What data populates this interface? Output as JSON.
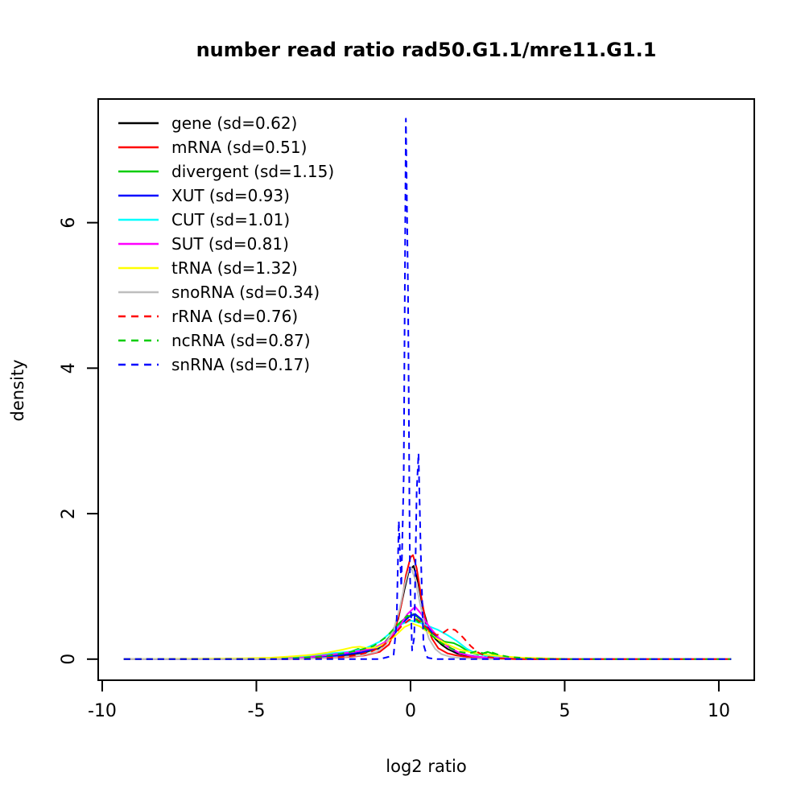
{
  "chart_data": {
    "type": "line",
    "title": "number read ratio rad50.G1.1/mre11.G1.1",
    "xlabel": "log2 ratio",
    "ylabel": "density",
    "xlim": [
      -10.13,
      11.15
    ],
    "ylim": [
      -0.29,
      7.7
    ],
    "x_ticks": [
      -10,
      -5,
      0,
      5,
      10
    ],
    "y_ticks": [
      0,
      2,
      4,
      6
    ],
    "grid": false,
    "legend_position": "top-left",
    "series": [
      {
        "name": "gene",
        "sd": 0.62,
        "label": "gene (sd=0.62)",
        "color": "#000000",
        "dashed": false,
        "points": [
          [
            -9.3,
            0
          ],
          [
            -5,
            0
          ],
          [
            -4,
            0.01
          ],
          [
            -3,
            0.02
          ],
          [
            -2.5,
            0.04
          ],
          [
            -2,
            0.06
          ],
          [
            -1.5,
            0.09
          ],
          [
            -1,
            0.15
          ],
          [
            -0.7,
            0.28
          ],
          [
            -0.4,
            0.55
          ],
          [
            -0.2,
            0.95
          ],
          [
            -0.05,
            1.22
          ],
          [
            0.1,
            1.28
          ],
          [
            0.25,
            1.05
          ],
          [
            0.4,
            0.7
          ],
          [
            0.6,
            0.4
          ],
          [
            0.8,
            0.28
          ],
          [
            1,
            0.2
          ],
          [
            1.2,
            0.14
          ],
          [
            1.5,
            0.08
          ],
          [
            1.8,
            0.05
          ],
          [
            2.2,
            0.03
          ],
          [
            3,
            0.01
          ],
          [
            4,
            0
          ],
          [
            10.4,
            0
          ]
        ]
      },
      {
        "name": "mRNA",
        "sd": 0.51,
        "label": "mRNA (sd=0.51)",
        "color": "#FF0000",
        "dashed": false,
        "points": [
          [
            -9.3,
            0
          ],
          [
            -4,
            0
          ],
          [
            -3,
            0.01
          ],
          [
            -2,
            0.03
          ],
          [
            -1.5,
            0.05
          ],
          [
            -1,
            0.1
          ],
          [
            -0.7,
            0.2
          ],
          [
            -0.5,
            0.4
          ],
          [
            -0.3,
            0.75
          ],
          [
            -0.15,
            1.15
          ],
          [
            0,
            1.4
          ],
          [
            0.08,
            1.43
          ],
          [
            0.2,
            1.25
          ],
          [
            0.35,
            0.85
          ],
          [
            0.5,
            0.5
          ],
          [
            0.7,
            0.28
          ],
          [
            0.9,
            0.15
          ],
          [
            1.2,
            0.08
          ],
          [
            1.5,
            0.05
          ],
          [
            2,
            0.02
          ],
          [
            2.8,
            0.01
          ],
          [
            3.5,
            0
          ],
          [
            10.4,
            0
          ]
        ]
      },
      {
        "name": "divergent",
        "sd": 1.15,
        "label": "divergent (sd=1.15)",
        "color": "#00CD00",
        "dashed": false,
        "points": [
          [
            -9.3,
            0
          ],
          [
            -4.5,
            0
          ],
          [
            -3.5,
            0.02
          ],
          [
            -2.8,
            0.04
          ],
          [
            -2.2,
            0.07
          ],
          [
            -1.9,
            0.11
          ],
          [
            -1.7,
            0.14
          ],
          [
            -1.5,
            0.11
          ],
          [
            -1.2,
            0.12
          ],
          [
            -0.9,
            0.2
          ],
          [
            -0.6,
            0.35
          ],
          [
            -0.3,
            0.52
          ],
          [
            -0.1,
            0.58
          ],
          [
            0.1,
            0.62
          ],
          [
            0.3,
            0.55
          ],
          [
            0.5,
            0.45
          ],
          [
            0.8,
            0.32
          ],
          [
            1.1,
            0.24
          ],
          [
            1.4,
            0.22
          ],
          [
            1.6,
            0.18
          ],
          [
            1.9,
            0.1
          ],
          [
            2.2,
            0.06
          ],
          [
            2.5,
            0.1
          ],
          [
            2.7,
            0.07
          ],
          [
            3,
            0.03
          ],
          [
            3.5,
            0.01
          ],
          [
            4.5,
            0
          ],
          [
            10.4,
            0
          ]
        ]
      },
      {
        "name": "XUT",
        "sd": 0.93,
        "label": "XUT (sd=0.93)",
        "color": "#0000FF",
        "dashed": false,
        "points": [
          [
            -9.3,
            0
          ],
          [
            -4,
            0
          ],
          [
            -3,
            0.02
          ],
          [
            -2.5,
            0.04
          ],
          [
            -2,
            0.07
          ],
          [
            -1.5,
            0.1
          ],
          [
            -1,
            0.17
          ],
          [
            -0.6,
            0.3
          ],
          [
            -0.3,
            0.48
          ],
          [
            -0.05,
            0.58
          ],
          [
            0.15,
            0.62
          ],
          [
            0.35,
            0.55
          ],
          [
            0.6,
            0.42
          ],
          [
            0.9,
            0.28
          ],
          [
            1.2,
            0.18
          ],
          [
            1.5,
            0.1
          ],
          [
            1.9,
            0.05
          ],
          [
            2.4,
            0.02
          ],
          [
            3.2,
            0.01
          ],
          [
            4,
            0
          ],
          [
            10.4,
            0
          ]
        ]
      },
      {
        "name": "CUT",
        "sd": 1.01,
        "label": "CUT (sd=1.01)",
        "color": "#00FFFF",
        "dashed": false,
        "points": [
          [
            -9.3,
            0
          ],
          [
            -5,
            0
          ],
          [
            -4,
            0.02
          ],
          [
            -3.2,
            0.05
          ],
          [
            -2.6,
            0.08
          ],
          [
            -2,
            0.1
          ],
          [
            -1.5,
            0.14
          ],
          [
            -1,
            0.24
          ],
          [
            -0.6,
            0.38
          ],
          [
            -0.3,
            0.48
          ],
          [
            0,
            0.53
          ],
          [
            0.3,
            0.5
          ],
          [
            0.6,
            0.45
          ],
          [
            0.9,
            0.4
          ],
          [
            1.2,
            0.33
          ],
          [
            1.5,
            0.25
          ],
          [
            1.8,
            0.15
          ],
          [
            2.1,
            0.08
          ],
          [
            2.5,
            0.04
          ],
          [
            3,
            0.02
          ],
          [
            3.8,
            0.01
          ],
          [
            4.5,
            0
          ],
          [
            10.4,
            0
          ]
        ]
      },
      {
        "name": "SUT",
        "sd": 0.81,
        "label": "SUT (sd=0.81)",
        "color": "#FF00FF",
        "dashed": false,
        "points": [
          [
            -9.3,
            0
          ],
          [
            -4.5,
            0
          ],
          [
            -3.5,
            0.02
          ],
          [
            -2.8,
            0.05
          ],
          [
            -2.2,
            0.08
          ],
          [
            -1.7,
            0.11
          ],
          [
            -1.2,
            0.15
          ],
          [
            -0.8,
            0.24
          ],
          [
            -0.4,
            0.42
          ],
          [
            -0.1,
            0.62
          ],
          [
            0.15,
            0.72
          ],
          [
            0.35,
            0.62
          ],
          [
            0.6,
            0.45
          ],
          [
            0.9,
            0.3
          ],
          [
            1.2,
            0.17
          ],
          [
            1.4,
            0.13
          ],
          [
            1.6,
            0.08
          ],
          [
            2,
            0.04
          ],
          [
            2.5,
            0.02
          ],
          [
            3.2,
            0.01
          ],
          [
            4,
            0
          ],
          [
            10.4,
            0
          ]
        ]
      },
      {
        "name": "tRNA",
        "sd": 1.32,
        "label": "tRNA (sd=1.32)",
        "color": "#FFFF00",
        "dashed": false,
        "points": [
          [
            -9.3,
            0
          ],
          [
            -5.5,
            0.01
          ],
          [
            -4.5,
            0.02
          ],
          [
            -3.8,
            0.04
          ],
          [
            -3.2,
            0.06
          ],
          [
            -2.7,
            0.09
          ],
          [
            -2.2,
            0.13
          ],
          [
            -1.9,
            0.16
          ],
          [
            -1.65,
            0.17
          ],
          [
            -1.4,
            0.15
          ],
          [
            -1.1,
            0.16
          ],
          [
            -0.8,
            0.22
          ],
          [
            -0.5,
            0.32
          ],
          [
            -0.2,
            0.44
          ],
          [
            0.05,
            0.49
          ],
          [
            0.3,
            0.45
          ],
          [
            0.6,
            0.36
          ],
          [
            0.9,
            0.27
          ],
          [
            1.2,
            0.2
          ],
          [
            1.6,
            0.13
          ],
          [
            2,
            0.09
          ],
          [
            2.5,
            0.06
          ],
          [
            3,
            0.04
          ],
          [
            3.6,
            0.02
          ],
          [
            4.5,
            0.01
          ],
          [
            5.5,
            0
          ],
          [
            10.4,
            0
          ]
        ]
      },
      {
        "name": "snoRNA",
        "sd": 0.34,
        "label": "snoRNA (sd=0.34)",
        "color": "#BEBEBE",
        "dashed": false,
        "points": [
          [
            -9.3,
            0
          ],
          [
            -4,
            0
          ],
          [
            -3,
            0.01
          ],
          [
            -2.2,
            0.03
          ],
          [
            -1.6,
            0.05
          ],
          [
            -1.1,
            0.1
          ],
          [
            -0.8,
            0.2
          ],
          [
            -0.55,
            0.4
          ],
          [
            -0.35,
            0.7
          ],
          [
            -0.2,
            1.0
          ],
          [
            -0.08,
            1.2
          ],
          [
            0.02,
            1.26
          ],
          [
            0.15,
            1.1
          ],
          [
            0.3,
            0.78
          ],
          [
            0.45,
            0.48
          ],
          [
            0.6,
            0.28
          ],
          [
            0.8,
            0.14
          ],
          [
            1,
            0.07
          ],
          [
            1.3,
            0.03
          ],
          [
            1.8,
            0.01
          ],
          [
            2.5,
            0
          ],
          [
            10.4,
            0
          ]
        ]
      },
      {
        "name": "rRNA",
        "sd": 0.76,
        "label": "rRNA (sd=0.76)",
        "color": "#FF0000",
        "dashed": true,
        "points": [
          [
            -9.3,
            0
          ],
          [
            -3.5,
            0
          ],
          [
            -2.5,
            0.02
          ],
          [
            -1.8,
            0.05
          ],
          [
            -1.3,
            0.1
          ],
          [
            -0.9,
            0.18
          ],
          [
            -0.6,
            0.3
          ],
          [
            -0.3,
            0.45
          ],
          [
            -0.05,
            0.54
          ],
          [
            0.2,
            0.55
          ],
          [
            0.4,
            0.48
          ],
          [
            0.6,
            0.4
          ],
          [
            0.85,
            0.33
          ],
          [
            1.05,
            0.36
          ],
          [
            1.25,
            0.42
          ],
          [
            1.45,
            0.4
          ],
          [
            1.7,
            0.3
          ],
          [
            1.95,
            0.18
          ],
          [
            2.2,
            0.09
          ],
          [
            2.5,
            0.03
          ],
          [
            2.9,
            0.01
          ],
          [
            3.5,
            0
          ],
          [
            10.4,
            0
          ]
        ]
      },
      {
        "name": "ncRNA",
        "sd": 0.87,
        "label": "ncRNA (sd=0.87)",
        "color": "#00CD00",
        "dashed": true,
        "points": [
          [
            -9.3,
            0
          ],
          [
            -4.5,
            0
          ],
          [
            -3.5,
            0.02
          ],
          [
            -2.8,
            0.04
          ],
          [
            -2.2,
            0.08
          ],
          [
            -1.7,
            0.12
          ],
          [
            -1.2,
            0.18
          ],
          [
            -0.8,
            0.3
          ],
          [
            -0.4,
            0.48
          ],
          [
            -0.1,
            0.6
          ],
          [
            0.15,
            0.55
          ],
          [
            0.4,
            0.45
          ],
          [
            0.7,
            0.32
          ],
          [
            1,
            0.22
          ],
          [
            1.3,
            0.15
          ],
          [
            1.6,
            0.1
          ],
          [
            1.9,
            0.08
          ],
          [
            2.15,
            0.11
          ],
          [
            2.35,
            0.08
          ],
          [
            2.6,
            0.1
          ],
          [
            2.85,
            0.06
          ],
          [
            3.2,
            0.03
          ],
          [
            3.8,
            0.01
          ],
          [
            4.8,
            0
          ],
          [
            10.4,
            0
          ]
        ]
      },
      {
        "name": "snRNA",
        "sd": 0.17,
        "label": "snRNA (sd=0.17)",
        "color": "#0000FF",
        "dashed": true,
        "points": [
          [
            -9.3,
            0
          ],
          [
            -1,
            0
          ],
          [
            -0.55,
            0.05
          ],
          [
            -0.45,
            0.5
          ],
          [
            -0.38,
            1.9
          ],
          [
            -0.3,
            1.0
          ],
          [
            -0.22,
            2.5
          ],
          [
            -0.15,
            7.43
          ],
          [
            -0.08,
            5.0
          ],
          [
            -0.02,
            1.2
          ],
          [
            0.05,
            0.12
          ],
          [
            0.12,
            0.3
          ],
          [
            0.2,
            2.3
          ],
          [
            0.26,
            2.83
          ],
          [
            0.33,
            1.5
          ],
          [
            0.42,
            0.2
          ],
          [
            0.55,
            0.02
          ],
          [
            0.8,
            0
          ],
          [
            10.4,
            0
          ]
        ]
      }
    ]
  }
}
